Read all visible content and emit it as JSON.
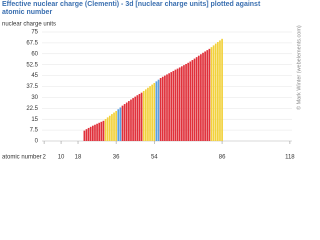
{
  "chart_data": {
    "type": "bar",
    "title": "Effective nuclear charge (Clementi) - 3d [nuclear charge units] plotted against atomic number",
    "y_label": "nuclear charge units",
    "x_label": "atomic number",
    "credit": "© Mark Winter (webelements.com)",
    "x": [
      21,
      22,
      23,
      24,
      25,
      26,
      27,
      28,
      29,
      30,
      31,
      32,
      33,
      34,
      35,
      36,
      37,
      38,
      39,
      40,
      41,
      42,
      43,
      44,
      45,
      46,
      47,
      48,
      49,
      50,
      51,
      52,
      53,
      54,
      55,
      56,
      57,
      58,
      59,
      60,
      61,
      62,
      63,
      64,
      65,
      66,
      67,
      68,
      69,
      70,
      71,
      72,
      73,
      74,
      75,
      76,
      77,
      78,
      79,
      80,
      81,
      82,
      83,
      84,
      85,
      86
    ],
    "values": [
      7.12,
      8.14,
      8.98,
      9.76,
      10.53,
      11.18,
      11.86,
      12.53,
      13.2,
      13.88,
      15.09,
      16.25,
      17.38,
      18.5,
      19.57,
      20.6,
      21.84,
      23.08,
      24.32,
      25.42,
      26.46,
      27.48,
      28.51,
      29.52,
      30.51,
      31.49,
      32.37,
      33.26,
      34.42,
      35.53,
      36.63,
      37.73,
      38.81,
      39.88,
      41.03,
      42.18,
      43.33,
      44.2,
      45,
      45.8,
      46.6,
      47.4,
      48.2,
      49.1,
      49.8,
      50.6,
      51.4,
      52.2,
      53,
      53.8,
      54.7,
      55.7,
      56.7,
      57.7,
      58.7,
      59.7,
      60.7,
      61.6,
      62.5,
      63.4,
      64.6,
      65.8,
      67,
      68.1,
      69.2,
      70.3
    ],
    "colors": [
      "#e0303a",
      "#e0303a",
      "#e0303a",
      "#e0303a",
      "#e0303a",
      "#e0303a",
      "#e0303a",
      "#e0303a",
      "#e0303a",
      "#e0303a",
      "#f2d13b",
      "#f2d13b",
      "#f2d13b",
      "#f2d13b",
      "#f2d13b",
      "#f2d13b",
      "#5aa0e0",
      "#5aa0e0",
      "#e0303a",
      "#e0303a",
      "#e0303a",
      "#e0303a",
      "#e0303a",
      "#e0303a",
      "#e0303a",
      "#e0303a",
      "#e0303a",
      "#e0303a",
      "#f2d13b",
      "#f2d13b",
      "#f2d13b",
      "#f2d13b",
      "#f2d13b",
      "#f2d13b",
      "#5aa0e0",
      "#5aa0e0",
      "#e0303a",
      "#e0303a",
      "#e0303a",
      "#e0303a",
      "#e0303a",
      "#e0303a",
      "#e0303a",
      "#e0303a",
      "#e0303a",
      "#e0303a",
      "#e0303a",
      "#e0303a",
      "#e0303a",
      "#e0303a",
      "#e0303a",
      "#e0303a",
      "#e0303a",
      "#e0303a",
      "#e0303a",
      "#e0303a",
      "#e0303a",
      "#e0303a",
      "#e0303a",
      "#e0303a",
      "#f2d13b",
      "#f2d13b",
      "#f2d13b",
      "#f2d13b",
      "#f2d13b",
      "#f2d13b"
    ],
    "xlim": [
      1,
      119
    ],
    "xticks": [
      2,
      10,
      18,
      36,
      54,
      86,
      118
    ],
    "ylim": [
      0,
      75
    ],
    "yticks": [
      0,
      7.5,
      15,
      22.5,
      30,
      37.5,
      45,
      52.5,
      60,
      67.5,
      75
    ],
    "grid": true
  }
}
